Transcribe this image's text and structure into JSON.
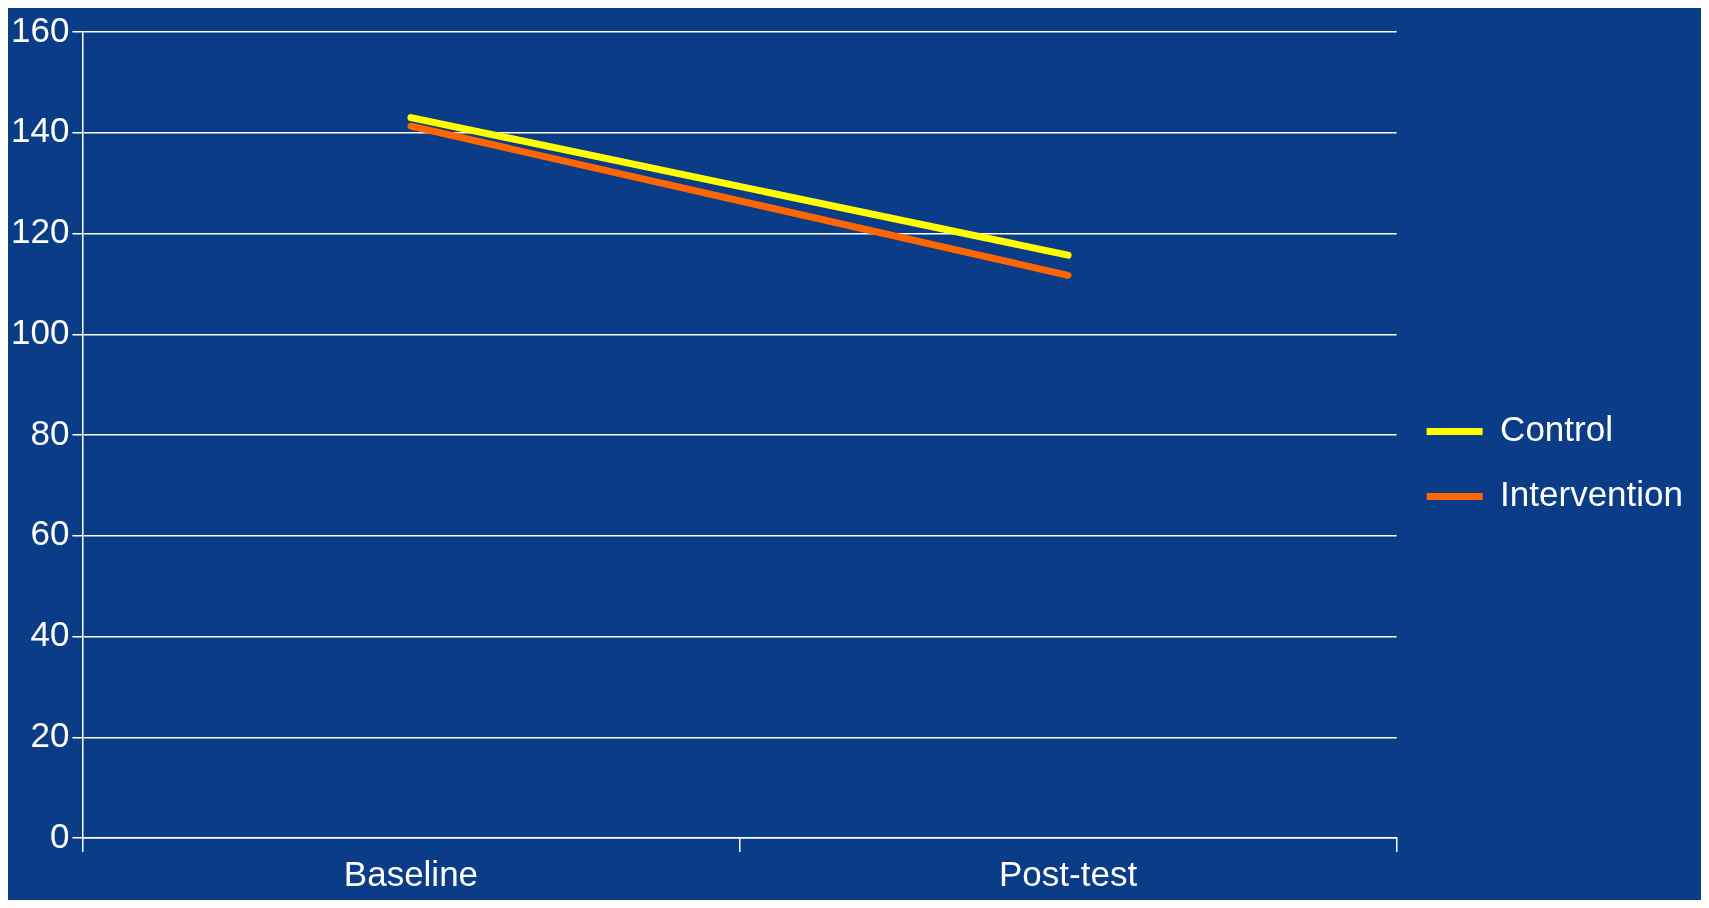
{
  "chart_data": {
    "type": "line",
    "categories": [
      "Baseline",
      "Post-test"
    ],
    "series": [
      {
        "name": "Control",
        "color": "#ffff00",
        "values": [
          143,
          115.7
        ]
      },
      {
        "name": "Intervention",
        "color": "#ff6600",
        "values": [
          141.3,
          111.7
        ]
      }
    ],
    "ylim": [
      0,
      160
    ],
    "yticks": [
      0,
      20,
      40,
      60,
      80,
      100,
      120,
      140,
      160
    ],
    "grid": "y",
    "legend": "right",
    "marker": "none",
    "line_style": "solid"
  }
}
